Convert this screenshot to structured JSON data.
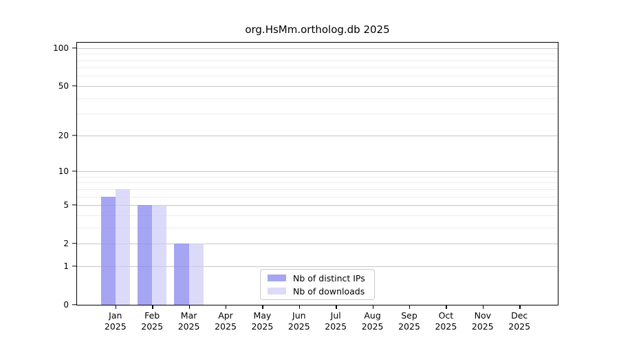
{
  "title": "org.HsMm.ortholog.db 2025",
  "chart_data": {
    "type": "bar",
    "title": "org.HsMm.ortholog.db 2025",
    "categories": [
      "Jan",
      "Feb",
      "Mar",
      "Apr",
      "May",
      "Jun",
      "Jul",
      "Aug",
      "Sep",
      "Oct",
      "Nov",
      "Dec"
    ],
    "x_tick_year": "2025",
    "series": [
      {
        "name": "Nb of distinct IPs",
        "color": "rgba(140,140,238,0.78)",
        "values": [
          6,
          5,
          2,
          0,
          0,
          0,
          0,
          0,
          0,
          0,
          0,
          0
        ]
      },
      {
        "name": "Nb of downloads",
        "color": "rgba(205,205,247,0.72)",
        "values": [
          7,
          5,
          2,
          0,
          0,
          0,
          0,
          0,
          0,
          0,
          0,
          0
        ]
      }
    ],
    "y_scale": "log1p",
    "y_ticks": [
      0,
      1,
      2,
      5,
      10,
      20,
      50,
      100
    ],
    "y_minor_gridlines": [
      3,
      4,
      6,
      7,
      8,
      9,
      30,
      40,
      60,
      70,
      80,
      90
    ],
    "ylim": [
      0,
      110
    ],
    "grid": "horizontal",
    "legend_position": "inside-bottom-center"
  }
}
